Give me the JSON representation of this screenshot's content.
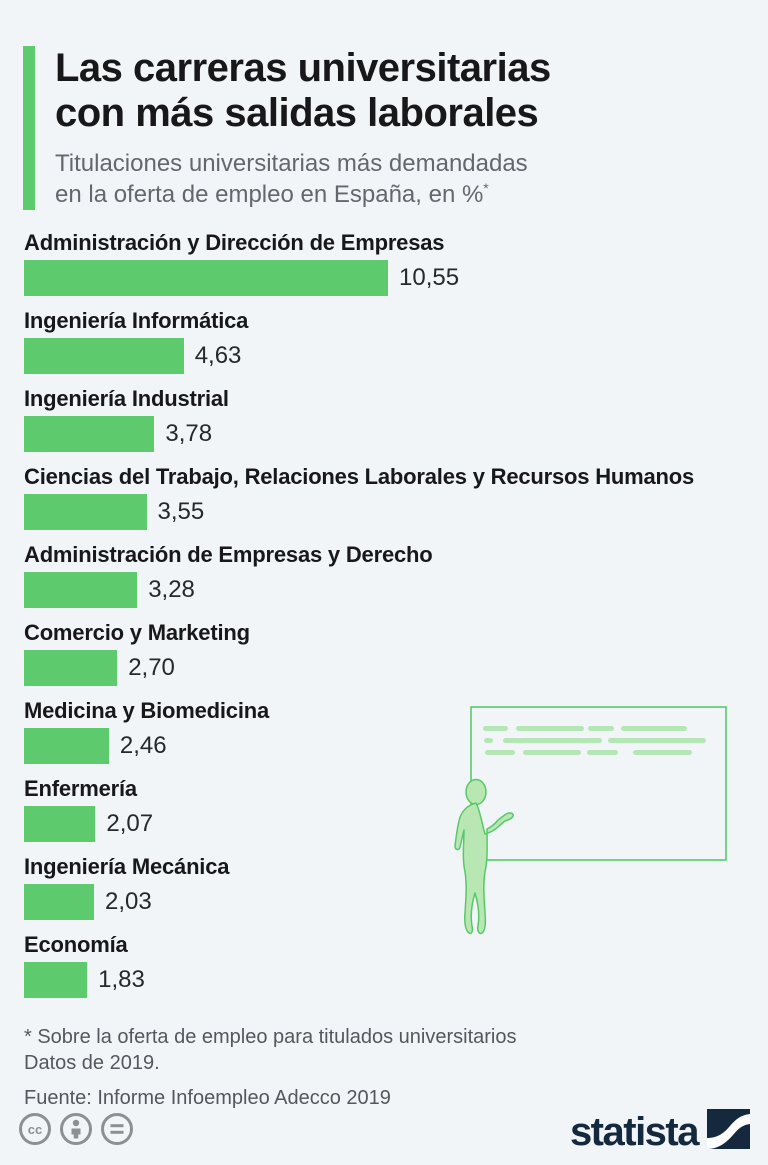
{
  "header": {
    "title_line1": "Las carreras universitarias",
    "title_line2": "con más salidas laborales",
    "subtitle_line1": "Titulaciones universitarias más demandadas",
    "subtitle_line2": "en la oferta de empleo en España, en %",
    "subtitle_sup": "*"
  },
  "chart_data": {
    "type": "bar",
    "orientation": "horizontal",
    "unit": "%",
    "title": "Titulaciones universitarias más demandadas en la oferta de empleo en España, en %",
    "categories": [
      "Administración y Dirección de Empresas",
      "Ingeniería Informática",
      "Ingeniería Industrial",
      "Ciencias del Trabajo, Relaciones Laborales y Recursos Humanos",
      "Administración de Empresas y Derecho",
      "Comercio y Marketing",
      "Medicina y Biomedicina",
      "Enfermería",
      "Ingeniería Mecánica",
      "Economía"
    ],
    "values": [
      10.55,
      4.63,
      3.78,
      3.55,
      3.28,
      2.7,
      2.46,
      2.07,
      2.03,
      1.83
    ],
    "value_labels": [
      "10,55",
      "4,63",
      "3,78",
      "3,55",
      "3,28",
      "2,70",
      "2,46",
      "2,07",
      "2,03",
      "1,83"
    ],
    "xlim": [
      0,
      10.55
    ],
    "grid": false,
    "legend": "none",
    "bar_color": "#5dcb6d"
  },
  "footnote": {
    "line1": "* Sobre la oferta de empleo para titulados universitarios",
    "line2": "Datos de 2019.",
    "source": "Fuente: Informe Infoempleo Adecco 2019"
  },
  "branding": {
    "logo_text": "statista",
    "license_icons": [
      "cc-icon",
      "attribution-icon",
      "equal-license-icon"
    ]
  },
  "colors": {
    "background": "#f1f5f8",
    "bar_green": "#5dcb6d",
    "title_text": "#18181a",
    "subtitle_gray": "#62686d",
    "footnote_gray": "#54585c",
    "license_gray": "#8d9093",
    "brand_navy": "#15293e",
    "illustration_outline": "#57c969",
    "illustration_fill": "#b9e7b4",
    "illustration_dashes": "#b5e6b5"
  }
}
